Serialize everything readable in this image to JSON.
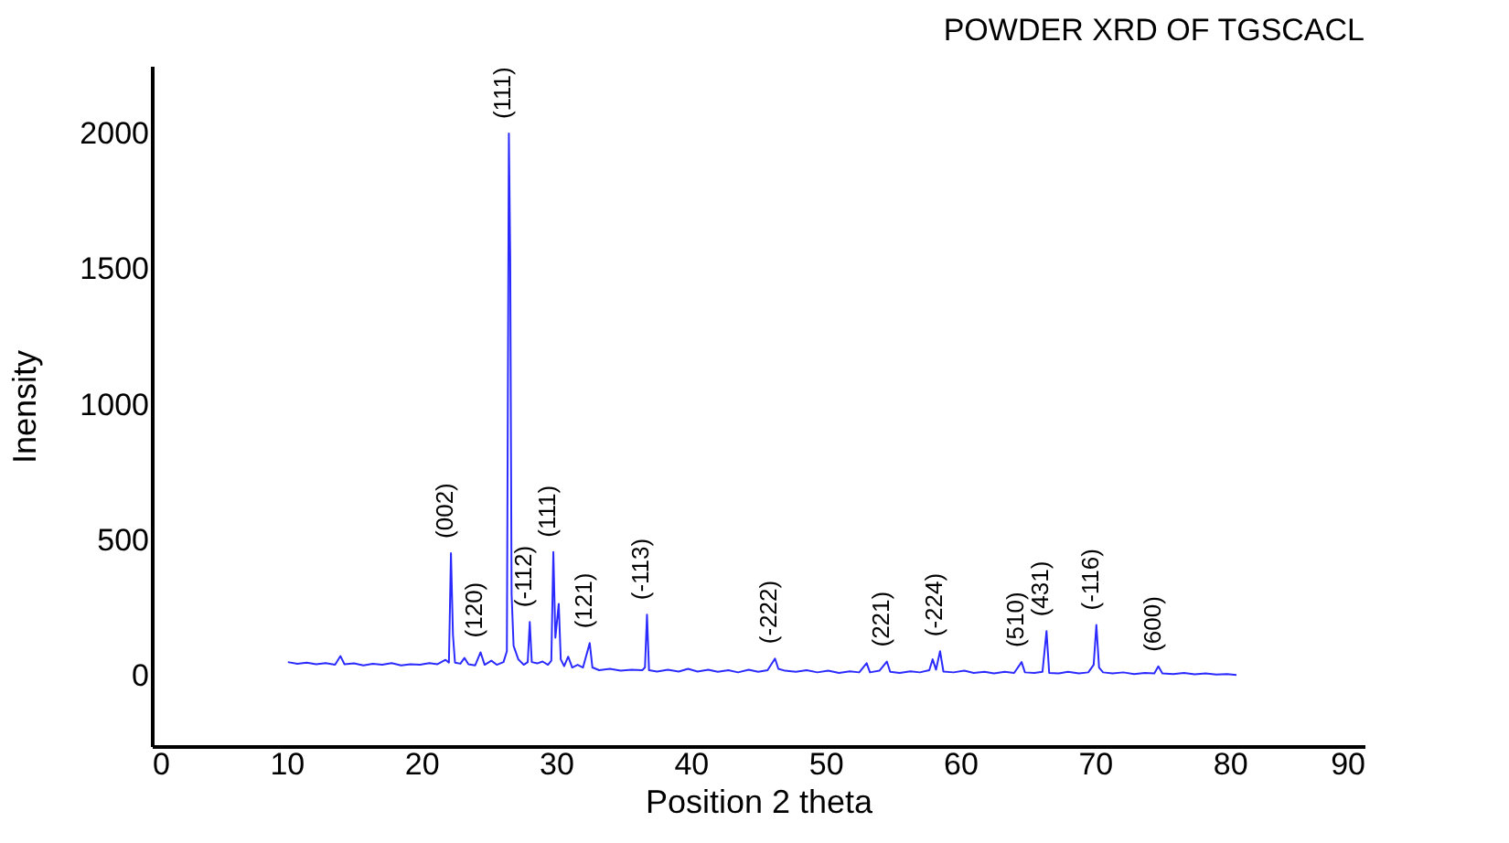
{
  "chart_data": {
    "type": "line",
    "title": "POWDER XRD OF TGSCACL",
    "xlabel": "Position 2 theta",
    "ylabel": "Inensity",
    "x": [
      10.1,
      10.8,
      11.5,
      12.2,
      12.9,
      13.6,
      14.0,
      14.3,
      15.0,
      15.7,
      16.4,
      17.1,
      17.8,
      18.5,
      19.2,
      19.9,
      20.6,
      21.2,
      21.8,
      22.05,
      22.2,
      22.35,
      22.5,
      22.9,
      23.2,
      23.5,
      24.0,
      24.4,
      24.7,
      25.2,
      25.6,
      26.1,
      26.35,
      26.5,
      26.6,
      26.7,
      26.85,
      27.2,
      27.6,
      27.9,
      28.05,
      28.2,
      28.6,
      29.0,
      29.4,
      29.65,
      29.8,
      29.95,
      30.2,
      30.35,
      30.6,
      30.9,
      31.2,
      31.6,
      32.0,
      32.5,
      32.7,
      33.2,
      34.0,
      34.8,
      35.6,
      36.4,
      36.6,
      36.75,
      36.9,
      37.5,
      38.3,
      39.1,
      39.8,
      40.5,
      41.3,
      42.0,
      42.8,
      43.5,
      44.3,
      45.0,
      45.7,
      46.25,
      46.5,
      47.0,
      47.8,
      48.6,
      49.4,
      50.2,
      51.0,
      51.8,
      52.5,
      53.05,
      53.3,
      54.0,
      54.55,
      54.8,
      55.5,
      56.3,
      57.0,
      57.7,
      57.95,
      58.2,
      58.5,
      58.75,
      59.5,
      60.3,
      61.0,
      61.8,
      62.5,
      63.3,
      64.0,
      64.55,
      64.8,
      65.5,
      66.1,
      66.4,
      66.6,
      67.3,
      68.0,
      68.8,
      69.5,
      69.9,
      70.1,
      70.3,
      70.6,
      71.3,
      72.1,
      72.9,
      73.7,
      74.4,
      74.7,
      75.0,
      75.8,
      76.6,
      77.4,
      78.2,
      79.0,
      79.8,
      80.5
    ],
    "series": [
      {
        "color": "#2b2bff",
        "values": [
          50,
          44,
          48,
          42,
          46,
          40,
          72,
          42,
          45,
          38,
          44,
          40,
          46,
          38,
          42,
          40,
          46,
          42,
          58,
          48,
          452,
          150,
          48,
          44,
          65,
          42,
          38,
          86,
          40,
          55,
          40,
          50,
          90,
          2000,
          1540,
          300,
          110,
          60,
          40,
          50,
          198,
          50,
          45,
          52,
          40,
          55,
          456,
          140,
          265,
          60,
          35,
          70,
          30,
          40,
          30,
          120,
          30,
          20,
          25,
          18,
          22,
          20,
          30,
          225,
          20,
          15,
          22,
          15,
          25,
          15,
          22,
          14,
          20,
          12,
          22,
          14,
          20,
          63,
          25,
          18,
          14,
          20,
          12,
          18,
          10,
          16,
          12,
          46,
          12,
          18,
          52,
          14,
          10,
          16,
          12,
          20,
          60,
          22,
          90,
          15,
          12,
          18,
          10,
          14,
          8,
          14,
          10,
          50,
          12,
          10,
          14,
          164,
          10,
          8,
          14,
          8,
          12,
          40,
          187,
          30,
          12,
          8,
          12,
          6,
          10,
          8,
          34,
          8,
          6,
          10,
          5,
          8,
          4,
          6,
          2
        ]
      }
    ],
    "xlim": [
      0,
      90
    ],
    "xticks": [
      0,
      10,
      20,
      30,
      40,
      50,
      60,
      70,
      80,
      90
    ],
    "ylim": [
      -260,
      2250
    ],
    "yticks": [
      0,
      500,
      1000,
      1500,
      2000
    ],
    "annotations": [
      {
        "text": "(002)",
        "x": 22.2,
        "y": 452
      },
      {
        "text": "(120)",
        "x": 24.4,
        "y": 86
      },
      {
        "text": "(111)",
        "x": 26.5,
        "y": 2000
      },
      {
        "text": "(-112)",
        "x": 28.05,
        "y": 198
      },
      {
        "text": "(111)",
        "x": 29.8,
        "y": 456
      },
      {
        "text": "(121)",
        "x": 32.5,
        "y": 120
      },
      {
        "text": "(-113)",
        "x": 36.75,
        "y": 225
      },
      {
        "text": "(-222)",
        "x": 46.25,
        "y": 63
      },
      {
        "text": "(221)",
        "x": 54.55,
        "y": 52
      },
      {
        "text": "(-224)",
        "x": 58.5,
        "y": 90
      },
      {
        "text": "(510)",
        "x": 64.55,
        "y": 50
      },
      {
        "text": "(431)",
        "x": 66.4,
        "y": 164
      },
      {
        "text": "(-116)",
        "x": 70.1,
        "y": 187
      },
      {
        "text": "(600)",
        "x": 74.7,
        "y": 34
      }
    ]
  }
}
